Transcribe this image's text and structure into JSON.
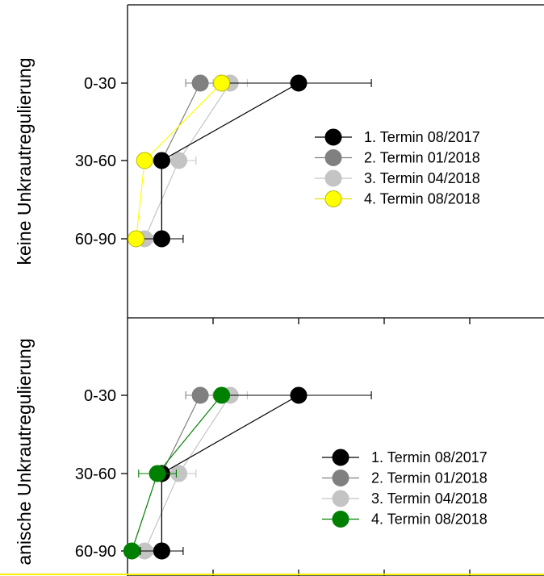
{
  "chart_data": [
    {
      "type": "scatter",
      "panel": "top",
      "ylabel": "keine Unkrautregulierung",
      "categories": [
        "0-30",
        "30-60",
        "60-90"
      ],
      "xlim": [
        0,
        5
      ],
      "legend_position": "right",
      "series": [
        {
          "name": "1. Termin 08/2017",
          "color": "#000000",
          "x": [
            2.0,
            0.4,
            0.4
          ],
          "xerr": [
            0.85,
            0.05,
            0.25
          ]
        },
        {
          "name": "2. Termin 01/2018",
          "color": "#808080",
          "x": [
            0.85,
            0.4,
            0.4
          ],
          "xerr": [
            0.17,
            0.05,
            0.05
          ]
        },
        {
          "name": "3. Termin 04/2018",
          "color": "#c4c4c4",
          "x": [
            1.2,
            0.6,
            0.2
          ],
          "xerr": [
            0.2,
            0.2,
            0.1
          ]
        },
        {
          "name": "4. Termin 08/2018",
          "color": "#ffff00",
          "x": [
            1.1,
            0.2,
            0.1
          ],
          "xerr": [
            0.05,
            0.05,
            0.05
          ]
        }
      ]
    },
    {
      "type": "scatter",
      "panel": "bottom",
      "ylabel": "anische Unkrautregulierung",
      "categories": [
        "0-30",
        "30-60",
        "60-90"
      ],
      "xlim": [
        0,
        5
      ],
      "legend_position": "bottom-right",
      "series": [
        {
          "name": "1. Termin 08/2017",
          "color": "#000000",
          "x": [
            2.0,
            0.4,
            0.4
          ],
          "xerr": [
            0.85,
            0.05,
            0.25
          ]
        },
        {
          "name": "2. Termin 01/2018",
          "color": "#808080",
          "x": [
            0.85,
            0.4,
            0.4
          ],
          "xerr": [
            0.17,
            0.05,
            0.05
          ]
        },
        {
          "name": "3. Termin 04/2018",
          "color": "#c4c4c4",
          "x": [
            1.2,
            0.6,
            0.2
          ],
          "xerr": [
            0.2,
            0.2,
            0.1
          ]
        },
        {
          "name": "4. Termin 08/2018",
          "color": "#008000",
          "x": [
            1.1,
            0.35,
            0.05
          ],
          "xerr": [
            0.05,
            0.22,
            0.05
          ]
        }
      ]
    }
  ]
}
